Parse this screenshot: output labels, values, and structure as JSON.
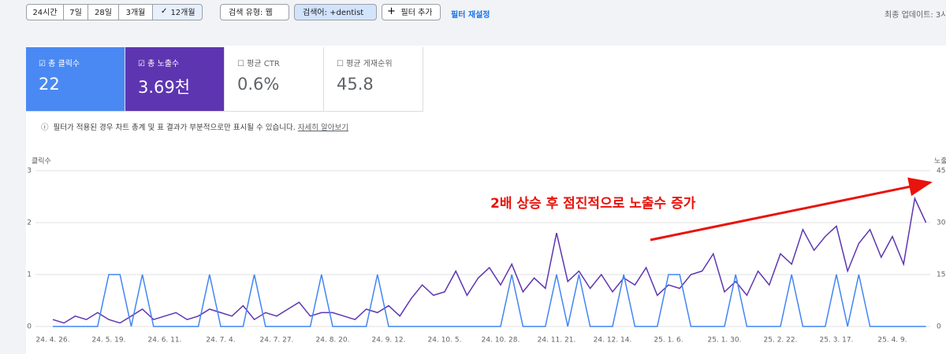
{
  "header": {
    "periods": [
      "24시간",
      "7일",
      "28일",
      "3개월",
      "12개월"
    ],
    "search_type": "검색 유형: 웹",
    "query_filter": "검색어: +dentist",
    "add_filter": "필터 추가",
    "reset_filter": "필터 재설정",
    "last_update": "최종 업데이트: 3시"
  },
  "metrics": [
    {
      "label": "총 클릭수",
      "value": "22"
    },
    {
      "label": "총 노출수",
      "value": "3.69천"
    },
    {
      "label": "평균 CTR",
      "value": "0.6%"
    },
    {
      "label": "평균 게재순위",
      "value": "45.8"
    }
  ],
  "notice": {
    "text": "필터가 적용된 경우 차트 총계 및 표 결과가 부분적으로만 표시될 수 있습니다.",
    "link": "자세히 알아보기"
  },
  "chart_data": {
    "type": "line",
    "annotation": "2배 상승 후 점진적으로 노출수 증가",
    "categories": [
      "24. 4. 26.",
      null,
      null,
      null,
      null,
      "24. 5. 19.",
      null,
      null,
      null,
      null,
      "24. 6. 11.",
      null,
      null,
      null,
      null,
      "24. 7. 4.",
      null,
      null,
      null,
      null,
      "24. 7. 27.",
      null,
      null,
      null,
      null,
      "24. 8. 20.",
      null,
      null,
      null,
      null,
      "24. 9. 12.",
      null,
      null,
      null,
      null,
      "24. 10. 5.",
      null,
      null,
      null,
      null,
      "24. 10. 28.",
      null,
      null,
      null,
      null,
      "24. 11. 21.",
      null,
      null,
      null,
      null,
      "24. 12. 14.",
      null,
      null,
      null,
      null,
      "25. 1. 6.",
      null,
      null,
      null,
      null,
      "25. 1. 30.",
      null,
      null,
      null,
      null,
      "25. 2. 22.",
      null,
      null,
      null,
      null,
      "25. 3. 17.",
      null,
      null,
      null,
      null,
      "25. 4. 9.",
      null,
      null,
      null
    ],
    "series": [
      {
        "name": "클릭수",
        "color": "#4285f4",
        "axis": "y",
        "values": [
          0,
          0,
          0,
          0,
          0,
          1,
          1,
          0,
          1,
          0,
          0,
          0,
          0,
          0,
          1,
          0,
          0,
          0,
          1,
          0,
          0,
          0,
          0,
          0,
          1,
          0,
          0,
          0,
          0,
          1,
          0,
          0,
          0,
          0,
          0,
          0,
          0,
          0,
          0,
          0,
          0,
          1,
          0,
          0,
          0,
          1,
          0,
          1,
          0,
          0,
          0,
          1,
          0,
          0,
          0,
          1,
          1,
          0,
          0,
          0,
          0,
          1,
          0,
          0,
          0,
          0,
          1,
          0,
          0,
          0,
          1,
          0,
          1,
          0,
          0,
          0,
          0,
          0,
          0
        ]
      },
      {
        "name": "노출수",
        "color": "#5e35b1",
        "axis": "y2",
        "values": [
          2,
          1,
          3,
          2,
          4,
          2,
          1,
          3,
          5,
          2,
          3,
          4,
          2,
          3,
          5,
          4,
          3,
          6,
          2,
          4,
          3,
          5,
          7,
          3,
          4,
          4,
          3,
          2,
          5,
          4,
          6,
          3,
          8,
          12,
          9,
          10,
          16,
          9,
          14,
          17,
          12,
          18,
          10,
          14,
          11,
          27,
          13,
          16,
          11,
          15,
          10,
          14,
          12,
          17,
          9,
          12,
          11,
          15,
          16,
          21,
          10,
          13,
          9,
          16,
          12,
          21,
          18,
          28,
          22,
          26,
          29,
          16,
          24,
          28,
          20,
          26,
          18,
          37,
          30
        ]
      }
    ],
    "ylim": [
      0,
      3
    ],
    "yticks": [
      0,
      1,
      2,
      3
    ],
    "y2lim": [
      0,
      45
    ],
    "y2ticks": [
      0,
      15,
      30,
      45
    ],
    "grid": true
  }
}
